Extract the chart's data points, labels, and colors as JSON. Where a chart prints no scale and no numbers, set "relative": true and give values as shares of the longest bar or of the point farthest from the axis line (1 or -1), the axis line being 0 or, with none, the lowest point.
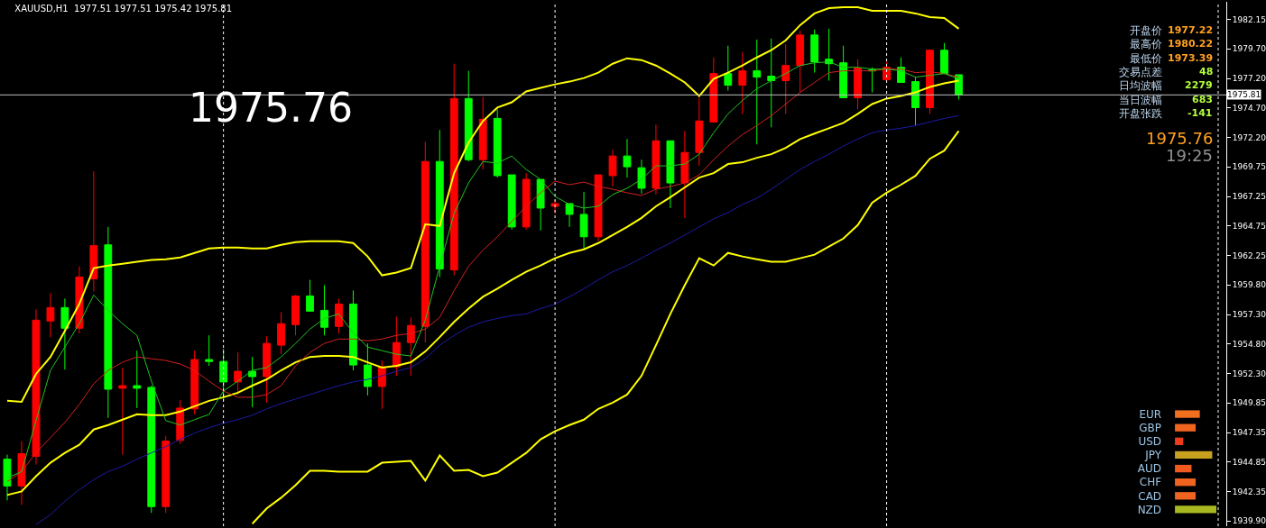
{
  "chart_data": [
    {
      "type": "candlestick",
      "title": "XAUUSD,H1  1977.51 1977.51 1975.42 1975.81",
      "annotations": [
        "1975.76",
        "开盘价",
        "1977.22",
        "最高价",
        "1980.22",
        "最低价",
        "1973.39",
        "交易点差",
        "48",
        "日均波幅",
        "2279",
        "当日波幅",
        "683",
        "开盘张跌",
        "-141",
        "1975.76",
        "19:25"
      ],
      "categories": [
        null,
        null,
        null,
        null,
        null,
        null,
        null,
        null,
        null,
        null,
        null,
        null,
        null,
        null,
        null,
        null,
        null,
        null,
        null,
        null,
        null,
        null,
        null,
        null,
        null,
        null,
        null,
        null,
        null,
        null,
        null,
        null,
        null,
        null,
        null,
        null,
        null,
        null,
        null,
        null,
        null,
        null,
        null,
        null,
        null,
        null,
        null,
        null,
        null,
        null,
        null,
        null,
        null,
        null,
        null,
        null,
        null,
        null,
        null,
        null,
        null,
        null,
        null,
        null,
        null,
        null,
        null
      ],
      "colors": [
        "#00ff00",
        "#ff0000",
        "#ff0000",
        "#ff0000",
        "#00ff00",
        "#ff0000",
        "#ff0000",
        "#00ff00",
        "#ff0000",
        "#00ff00",
        "#00ff00",
        "#ff0000",
        "#ff0000",
        "#ff0000",
        "#00ff00",
        "#00ff00",
        "#ff0000",
        "#00ff00",
        "#ff0000",
        "#ff0000",
        "#ff0000",
        "#00ff00",
        "#00ff00",
        "#ff0000",
        "#00ff00",
        "#00ff00",
        "#ff0000",
        "#ff0000",
        "#ff0000",
        "#ff0000",
        "#00ff00",
        "#ff0000",
        "#00ff00",
        "#ff0000",
        "#00ff00",
        "#00ff00",
        "#ff0000",
        "#00ff00",
        "#ff0000",
        "#00ff00",
        "#00ff00",
        "#ff0000",
        "#ff0000",
        "#00ff00",
        "#00ff00",
        "#ff0000",
        "#00ff00",
        "#ff0000",
        "#ff0000",
        "#ff0000",
        "#00ff00",
        "#ff0000",
        "#00ff00",
        "#00ff00",
        "#ff0000",
        "#ff0000",
        "#00ff00",
        "#00ff00",
        "#00ff00",
        "#ff0000",
        "#00ff00",
        "#ff0000",
        "#00ff00",
        "#00ff00",
        "#ff0000",
        "#00ff00",
        "#00ff00"
      ],
      "ohlc": [
        [
          1945.1,
          1945.48,
          1941.63,
          1942.84
        ],
        [
          1942.84,
          1946.62,
          1941.25,
          1945.56
        ],
        [
          1945.33,
          1957.73,
          1944.65,
          1956.82
        ],
        [
          1956.75,
          1959.09,
          1955.39,
          1957.88
        ],
        [
          1957.88,
          1958.64,
          1952.66,
          1956.14
        ],
        [
          1956.14,
          1961.36,
          1955.69,
          1960.45
        ],
        [
          1960.3,
          1969.37,
          1959.24,
          1963.1
        ],
        [
          1963.17,
          1964.68,
          1948.58,
          1951.0
        ],
        [
          1951.08,
          1952.82,
          1945.48,
          1951.3
        ],
        [
          1951.3,
          1954.25,
          1949.41,
          1951.08
        ],
        [
          1951.15,
          1951.3,
          1940.57,
          1941.1
        ],
        [
          1941.1,
          1947.07,
          1940.57,
          1946.62
        ],
        [
          1946.69,
          1950.09,
          1946.39,
          1949.41
        ],
        [
          1949.34,
          1954.25,
          1948.88,
          1953.5
        ],
        [
          1953.5,
          1955.54,
          1952.97,
          1953.34
        ],
        [
          1953.34,
          1954.4,
          1950.02,
          1951.61
        ],
        [
          1951.61,
          1954.1,
          1950.55,
          1952.51
        ],
        [
          1952.51,
          1953.72,
          1949.49,
          1952.06
        ],
        [
          1952.06,
          1955.46,
          1949.87,
          1954.86
        ],
        [
          1954.71,
          1957.5,
          1953.95,
          1956.52
        ],
        [
          1956.44,
          1958.94,
          1955.54,
          1958.86
        ],
        [
          1958.86,
          1960.22,
          1957.58,
          1957.58
        ],
        [
          1957.65,
          1959.77,
          1955.54,
          1956.22
        ],
        [
          1956.29,
          1958.64,
          1955.69,
          1958.18
        ],
        [
          1958.18,
          1959.32,
          1952.59,
          1953.04
        ],
        [
          1953.04,
          1954.86,
          1950.47,
          1951.23
        ],
        [
          1951.23,
          1953.42,
          1949.34,
          1952.89
        ],
        [
          1952.89,
          1957.12,
          1952.13,
          1954.93
        ],
        [
          1954.93,
          1957.05,
          1952.13,
          1956.37
        ],
        [
          1956.29,
          1971.87,
          1954.93,
          1970.2
        ],
        [
          1970.2,
          1972.85,
          1960.45,
          1961.13
        ],
        [
          1961.06,
          1978.44,
          1960.6,
          1975.5
        ],
        [
          1975.5,
          1977.84,
          1970.2,
          1970.35
        ],
        [
          1970.35,
          1975.65,
          1969.52,
          1973.76
        ],
        [
          1973.83,
          1974.59,
          1968.84,
          1969.0
        ],
        [
          1969.07,
          1969.07,
          1964.46,
          1964.68
        ],
        [
          1964.68,
          1969.22,
          1964.46,
          1968.69
        ],
        [
          1968.69,
          1968.69,
          1964.38,
          1966.27
        ],
        [
          1966.42,
          1966.95,
          1965.82,
          1966.65
        ],
        [
          1966.65,
          1966.65,
          1964.68,
          1965.74
        ],
        [
          1965.74,
          1967.63,
          1962.72,
          1963.85
        ],
        [
          1963.85,
          1969.07,
          1963.47,
          1969.07
        ],
        [
          1969.0,
          1971.19,
          1968.09,
          1970.66
        ],
        [
          1970.66,
          1972.09,
          1968.84,
          1969.75
        ],
        [
          1969.67,
          1970.35,
          1967.48,
          1967.94
        ],
        [
          1967.94,
          1973.3,
          1967.41,
          1971.94
        ],
        [
          1971.94,
          1971.94,
          1966.27,
          1968.39
        ],
        [
          1968.39,
          1972.77,
          1965.44,
          1970.96
        ],
        [
          1970.96,
          1975.57,
          1969.83,
          1973.61
        ],
        [
          1973.53,
          1978.97,
          1973.53,
          1977.61
        ],
        [
          1977.61,
          1979.96,
          1976.18,
          1976.63
        ],
        [
          1976.63,
          1979.43,
          1974.21,
          1977.84
        ],
        [
          1977.84,
          1980.48,
          1971.64,
          1977.31
        ],
        [
          1977.39,
          1980.56,
          1973.08,
          1977.01
        ],
        [
          1977.01,
          1980.11,
          1974.21,
          1978.29
        ],
        [
          1978.29,
          1981.24,
          1976.02,
          1980.86
        ],
        [
          1980.86,
          1981.32,
          1977.69,
          1978.59
        ],
        [
          1978.82,
          1981.39,
          1977.01,
          1978.44
        ],
        [
          1978.52,
          1979.96,
          1975.57,
          1975.57
        ],
        [
          1975.57,
          1978.82,
          1974.59,
          1978.07
        ],
        [
          1977.91,
          1978.14,
          1976.02,
          1977.84
        ],
        [
          1977.08,
          1978.59,
          1977.08,
          1978.14
        ],
        [
          1978.14,
          1978.97,
          1976.86,
          1976.86
        ],
        [
          1976.93,
          1977.31,
          1973.23,
          1974.74
        ],
        [
          1974.74,
          1979.58,
          1974.21,
          1979.58
        ],
        [
          1979.58,
          1980.18,
          1977.61,
          1977.61
        ],
        [
          1977.51,
          1977.51,
          1975.42,
          1975.81
        ]
      ],
      "series": [
        {
          "type": "line",
          "color": "#ffff00",
          "values": [
            1950.02,
            1949.94,
            1952.29,
            1953.72,
            1955.91,
            1958.18,
            1961.21,
            1961.43,
            1961.58,
            1961.74,
            1961.89,
            1961.96,
            1962.11,
            1962.49,
            1962.87,
            1962.95,
            1962.95,
            1962.87,
            1962.87,
            1963.17,
            1963.4,
            1963.47,
            1963.47,
            1963.47,
            1963.32,
            1962.19,
            1960.6,
            1960.83,
            1961.21,
            1964.91,
            1964.76,
            1969.22,
            1971.79,
            1973.61,
            1974.74,
            1975.19,
            1976.1,
            1976.4,
            1976.7,
            1976.93,
            1977.23,
            1977.69,
            1978.44,
            1978.9,
            1978.75,
            1978.29,
            1977.61,
            1976.86,
            1975.72,
            1977.16,
            1977.69,
            1978.29,
            1978.97,
            1979.58,
            1980.41,
            1981.69,
            1982.68,
            1983.13,
            1983.21,
            1983.21,
            1982.9,
            1982.9,
            1982.9,
            1982.68,
            1982.37,
            1982.3,
            1981.39
          ]
        },
        {
          "type": "line",
          "color": "#ffff00",
          "values": [
            1942.08,
            1942.38,
            1943.67,
            1944.8,
            1945.63,
            1946.31,
            1947.6,
            1947.98,
            1948.43,
            1948.88,
            1948.81,
            1948.81,
            1949.11,
            1949.56,
            1950.02,
            1950.32,
            1950.7,
            1951.3,
            1951.83,
            1952.59,
            1953.27,
            1953.72,
            1953.8,
            1953.8,
            1953.72,
            1953.27,
            1952.82,
            1952.97,
            1953.27,
            1954.18,
            1955.39,
            1956.67,
            1957.8,
            1958.79,
            1959.47,
            1960.22,
            1960.9,
            1961.43,
            1962.04,
            1962.49,
            1962.79,
            1963.32,
            1964.0,
            1964.68,
            1965.44,
            1966.42,
            1967.18,
            1968.01,
            1968.84,
            1969.22,
            1969.98,
            1970.13,
            1970.51,
            1970.81,
            1971.34,
            1972.09,
            1972.55,
            1973.0,
            1973.45,
            1974.21,
            1975.04,
            1975.5,
            1975.72,
            1976.02,
            1976.48,
            1976.78,
            1977.01
          ]
        },
        {
          "type": "line",
          "color": "#ffff00",
          "values": [
            null,
            null,
            null,
            null,
            null,
            null,
            null,
            null,
            null,
            null,
            null,
            null,
            null,
            null,
            null,
            null,
            null,
            1939.66,
            1940.95,
            1941.85,
            1942.91,
            1944.12,
            1944.12,
            1944.05,
            1944.05,
            1944.05,
            1944.8,
            1944.88,
            1944.95,
            1943.29,
            1945.41,
            1944.12,
            1944.2,
            1943.67,
            1943.97,
            1944.8,
            1945.63,
            1946.77,
            1947.45,
            1947.98,
            1948.43,
            1949.34,
            1949.87,
            1950.55,
            1952.13,
            1954.71,
            1957.35,
            1959.77,
            1962.04,
            1961.43,
            1962.49,
            1962.19,
            1961.96,
            1961.74,
            1961.74,
            1962.04,
            1962.34,
            1963.02,
            1963.7,
            1964.84,
            1966.73,
            1967.56,
            1968.24,
            1968.99,
            1970.43,
            1971.11,
            1972.77
          ]
        },
        {
          "type": "line",
          "color": "#1c1ca8",
          "values": [
            null,
            null,
            1939.59,
            1940.42,
            1941.55,
            1942.53,
            1943.37,
            1944.05,
            1944.5,
            1945.1,
            1945.63,
            1946.16,
            1946.77,
            1947.3,
            1947.75,
            1948.13,
            1948.43,
            1948.81,
            1949.34,
            1949.79,
            1950.17,
            1950.55,
            1950.93,
            1951.3,
            1951.61,
            1951.83,
            1952.13,
            1952.51,
            1952.82,
            1953.57,
            1954.71,
            1955.54,
            1956.22,
            1956.67,
            1956.97,
            1957.2,
            1957.35,
            1957.8,
            1958.18,
            1958.79,
            1959.47,
            1960.22,
            1960.9,
            1961.43,
            1962.04,
            1962.72,
            1963.32,
            1964.0,
            1964.68,
            1965.36,
            1965.89,
            1966.57,
            1967.1,
            1967.86,
            1968.69,
            1969.52,
            1970.2,
            1970.81,
            1971.49,
            1972.09,
            1972.62,
            1972.85,
            1973.0,
            1973.23,
            1973.53,
            1973.83,
            1974.06
          ]
        },
        {
          "type": "line",
          "color": "#d42020",
          "values": [
            1943.21,
            1944.05,
            1945.63,
            1946.92,
            1948.2,
            1949.72,
            1951.45,
            1952.59,
            1953.27,
            1953.72,
            1953.57,
            1953.42,
            1953.12,
            1952.59,
            1951.68,
            1950.85,
            1950.32,
            1950.32,
            1950.55,
            1951.3,
            1952.97,
            1954.1,
            1954.86,
            1955.23,
            1955.23,
            1955.08,
            1955.23,
            1955.54,
            1955.69,
            1956.07,
            1957.05,
            1959.32,
            1961.36,
            1962.72,
            1963.85,
            1965.14,
            1966.42,
            1967.56,
            1968.54,
            1968.24,
            1968.46,
            1968.09,
            1967.86,
            1967.56,
            1967.33,
            1967.86,
            1968.09,
            1968.39,
            1969.07,
            1970.35,
            1971.49,
            1972.47,
            1973.23,
            1974.06,
            1975.04,
            1976.02,
            1976.86,
            1977.69,
            1977.84,
            1977.84,
            1977.84,
            1977.99,
            1977.99,
            1977.69,
            1977.76,
            1977.61,
            1977.31
          ]
        },
        {
          "type": "line",
          "color": "#22c422",
          "values": [
            1943.52,
            1944.05,
            1948.35,
            1952.59,
            1954.55,
            1956.52,
            1958.94,
            1957.65,
            1956.52,
            1955.54,
            1951.68,
            1948.35,
            1947.98,
            1948.43,
            1948.88,
            1950.85,
            1951.68,
            1952.59,
            1952.82,
            1953.72,
            1954.86,
            1956.07,
            1956.97,
            1957.35,
            1955.76,
            1954.55,
            1954.25,
            1953.95,
            1953.8,
            1956.82,
            1961.36,
            1965.82,
            1968.39,
            1970.2,
            1970.05,
            1970.66,
            1969.52,
            1968.69,
            1967.25,
            1966.57,
            1966.27,
            1966.42,
            1967.41,
            1967.94,
            1968.69,
            1969.83,
            1969.83,
            1969.98,
            1970.81,
            1972.62,
            1974.21,
            1975.34,
            1976.33,
            1977.01,
            1977.61,
            1978.29,
            1978.52,
            1978.59,
            1978.14,
            1978.14,
            1977.99,
            1977.99,
            1977.84,
            1977.31,
            1977.46,
            1977.61,
            1977.16
          ]
        }
      ],
      "ylim": [
        1939.45,
        1983.66
      ],
      "yticks": [
        {
          "value": 1939.9,
          "label": "1939.90"
        },
        {
          "value": 1942.35,
          "label": "1942.35"
        },
        {
          "value": 1944.85,
          "label": "1944.85"
        },
        {
          "value": 1947.35,
          "label": "1947.35"
        },
        {
          "value": 1949.85,
          "label": "1949.85"
        },
        {
          "value": 1952.3,
          "label": "1952.30"
        },
        {
          "value": 1954.8,
          "label": "1954.80"
        },
        {
          "value": 1957.3,
          "label": "1957.30"
        },
        {
          "value": 1959.8,
          "label": "1959.80"
        },
        {
          "value": 1962.25,
          "label": "1962.25"
        },
        {
          "value": 1964.75,
          "label": "1964.75"
        },
        {
          "value": 1967.25,
          "label": "1967.25"
        },
        {
          "value": 1969.75,
          "label": "1969.75"
        },
        {
          "value": 1972.2,
          "label": "1972.20"
        },
        {
          "value": 1974.7,
          "label": "1974.70"
        },
        {
          "value": 1977.2,
          "label": "1977.20"
        },
        {
          "value": 1979.7,
          "label": "1979.70"
        },
        {
          "value": 1982.15,
          "label": "1982.15"
        }
      ],
      "ref_lines": [
        {
          "axis": "y",
          "value": 1975.81,
          "label": "1975.81",
          "color": "#c0c0c0"
        }
      ],
      "grid": "x",
      "tick_labels": "y"
    },
    {
      "type": "bar",
      "orientation": "horizontal",
      "relative": true,
      "categories": [
        "EUR",
        "GBP",
        "USD",
        "JPY",
        "AUD",
        "CHF",
        "CAD",
        "NZD"
      ],
      "values": [
        0.6,
        0.5,
        0.2,
        0.9,
        0.4,
        0.5,
        0.5,
        1
      ],
      "colors": [
        "#f07020",
        "#f06420",
        "#f03c1c",
        "#c8a020",
        "#f05a1e",
        "#f06420",
        "#f06420",
        "#a8b820"
      ],
      "tick_labels": "y"
    }
  ]
}
